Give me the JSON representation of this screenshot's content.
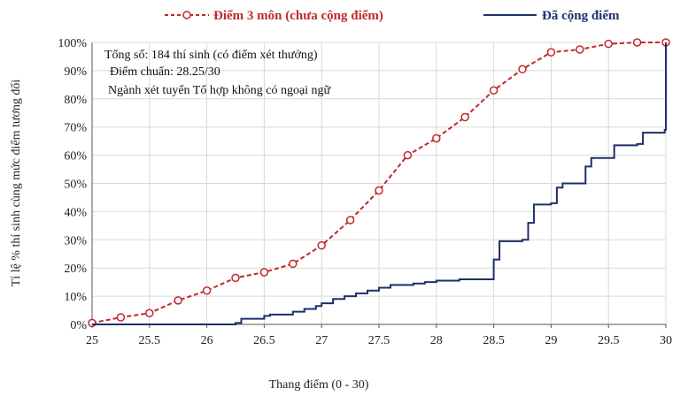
{
  "chart_data": {
    "type": "line",
    "xlabel": "Thang điểm (0 - 30)",
    "ylabel": "Tỉ lệ % thí sinh cùng mức điểm tương đối",
    "xlim": [
      25,
      30
    ],
    "ylim": [
      0,
      100
    ],
    "x_ticks": [
      "25",
      "25.5",
      "26",
      "26.5",
      "27",
      "27.5",
      "28",
      "28.5",
      "29",
      "29.5",
      "30"
    ],
    "y_ticks": [
      "0%",
      "10%",
      "20%",
      "30%",
      "40%",
      "50%",
      "60%",
      "70%",
      "80%",
      "90%",
      "100%"
    ],
    "grid": true,
    "legend_position": "top",
    "annotations": [
      "Tổng số: 184 thí sinh  (có điểm xét thưởng)",
      "Điểm chuẩn: 28.25/30",
      "Ngành xét tuyển Tổ hợp không có ngoại ngữ"
    ],
    "series": [
      {
        "name": "Điểm 3 môn (chưa cộng điểm)",
        "color": "#c0282c",
        "style": "dashed-markers",
        "x": [
          25,
          25.25,
          25.5,
          25.75,
          26,
          26.25,
          26.5,
          26.75,
          27,
          27.25,
          27.5,
          27.75,
          28,
          28.25,
          28.5,
          28.75,
          29,
          29.25,
          29.5,
          29.75,
          30
        ],
        "y": [
          0.5,
          2.5,
          4,
          8.5,
          12,
          16.5,
          18.5,
          21.5,
          28,
          37,
          47.5,
          60,
          66,
          73.5,
          83,
          90.5,
          96.5,
          97.5,
          99.5,
          100,
          100
        ]
      },
      {
        "name": "Đã cộng điểm",
        "color": "#1f2f6b",
        "style": "step",
        "x": [
          25,
          26.25,
          26.3,
          26.5,
          26.55,
          26.75,
          26.85,
          26.95,
          27.0,
          27.1,
          27.2,
          27.3,
          27.4,
          27.5,
          27.6,
          27.8,
          27.9,
          28.0,
          28.2,
          28.5,
          28.5,
          28.55,
          28.75,
          28.8,
          28.85,
          29.0,
          29.05,
          29.1,
          29.3,
          29.35,
          29.5,
          29.55,
          29.75,
          29.8,
          29.99,
          30
        ],
        "y": [
          0,
          0.5,
          2,
          3,
          3.5,
          4.5,
          5.5,
          6.5,
          7.5,
          9,
          10,
          11,
          12,
          13,
          14,
          14.5,
          15,
          15.5,
          16,
          16,
          23,
          29.5,
          30,
          36,
          42.5,
          43,
          48.5,
          50,
          56,
          59,
          59,
          63.5,
          64,
          68,
          69,
          100
        ]
      }
    ]
  }
}
